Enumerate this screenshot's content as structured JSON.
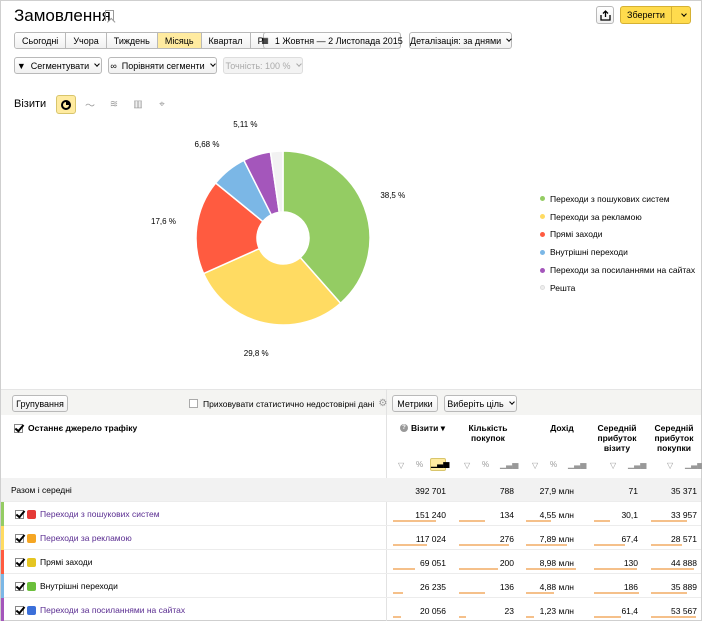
{
  "header": {
    "title": "Замовлення",
    "save_label": "Зберегти"
  },
  "period_tabs": [
    "Сьогодні",
    "Учора",
    "Тиждень",
    "Місяць",
    "Квартал",
    "Рік"
  ],
  "period_active": "Місяць",
  "date_range": "1 Жовтня — 2 Листопада 2015",
  "detalization": "Деталізація: за днями",
  "segment_label": "Сегментувати",
  "compare_label": "Порівняти сегменти",
  "accuracy_label": "Точність: 100 %",
  "chart_section_label": "Візити",
  "chart_data": {
    "type": "pie",
    "labels": [
      "Переходи з пошукових систем",
      "Переходи за рекламою",
      "Прямі заходи",
      "Внутрішні переходи",
      "Переходи за посиланнями на сайтах",
      "Решта"
    ],
    "values": [
      38.5,
      29.8,
      17.6,
      6.68,
      5.11,
      2.31
    ],
    "value_labels": [
      "38,5 %",
      "29,8 %",
      "17,6 %",
      "6,68 %",
      "5,11 %",
      ""
    ],
    "colors": [
      "#94cc63",
      "#ffdb62",
      "#ff5b40",
      "#7bb7e6",
      "#a456bb",
      "#f2f2f2"
    ],
    "legend_position": "right"
  },
  "table": {
    "grouping_label": "Групування",
    "hide_label": "Приховувати статистично недостовірні дані",
    "metrics_label": "Метрики",
    "goal_label": "Виберіть ціль",
    "dimension_header": "Останнє джерело трафіку",
    "columns": [
      {
        "label": "Візити ▾"
      },
      {
        "label": "Кількість покупок"
      },
      {
        "label": "Дохід"
      },
      {
        "label": "Середній прибуток візиту"
      },
      {
        "label": "Середній прибуток покупки"
      }
    ],
    "total": {
      "label": "Разом і середні",
      "values": [
        "392 701",
        "788",
        "27,9 млн",
        "71",
        "35 371"
      ]
    },
    "rows": [
      {
        "label": "Переходи з пошукових систем",
        "link": true,
        "values": [
          "151 240",
          "134",
          "4,55 млн",
          "30,1",
          "33 957"
        ],
        "color": "#94cc63",
        "icon_color": "#e53935",
        "bars": [
          0.78,
          0.48,
          0.45,
          0.35,
          0.8
        ]
      },
      {
        "label": "Переходи за рекламою",
        "link": true,
        "values": [
          "117 024",
          "276",
          "7,89 млн",
          "67,4",
          "28 571"
        ],
        "color": "#ffdb62",
        "icon_color": "#f5a623",
        "bars": [
          0.62,
          0.9,
          0.75,
          0.7,
          0.7
        ]
      },
      {
        "label": "Прямі заходи",
        "link": false,
        "values": [
          "69 051",
          "200",
          "8,98 млн",
          "130",
          "44 888"
        ],
        "color": "#ff5b40",
        "icon_color": "#e5c521",
        "bars": [
          0.4,
          0.7,
          0.9,
          0.95,
          0.95
        ]
      },
      {
        "label": "Внутрішні переходи",
        "link": false,
        "values": [
          "26 235",
          "136",
          "4,88 млн",
          "186",
          "35 889"
        ],
        "color": "#7bb7e6",
        "icon_color": "#6bbf3b",
        "bars": [
          0.18,
          0.48,
          0.5,
          1.0,
          0.8
        ]
      },
      {
        "label": "Переходи за посиланнями на сайтах",
        "link": true,
        "values": [
          "20 056",
          "23",
          "1,23 млн",
          "61,4",
          "53 567"
        ],
        "color": "#a456bb",
        "icon_color": "#3b6fd9",
        "bars": [
          0.15,
          0.12,
          0.15,
          0.6,
          1.0
        ]
      }
    ]
  }
}
